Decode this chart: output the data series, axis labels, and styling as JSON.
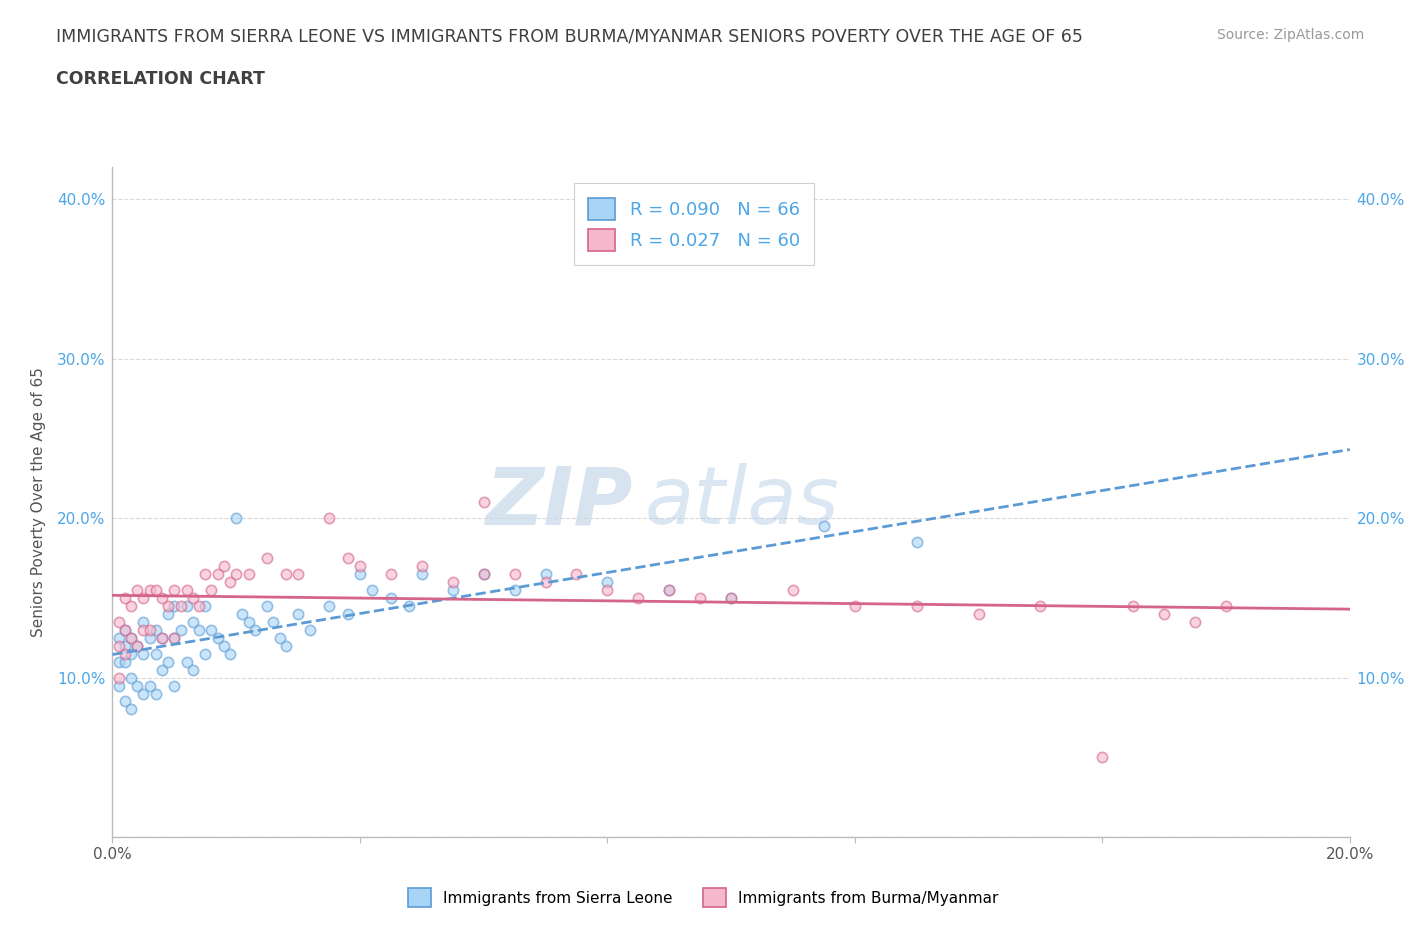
{
  "title_line1": "IMMIGRANTS FROM SIERRA LEONE VS IMMIGRANTS FROM BURMA/MYANMAR SENIORS POVERTY OVER THE AGE OF 65",
  "title_line2": "CORRELATION CHART",
  "source": "Source: ZipAtlas.com",
  "ylabel": "Seniors Poverty Over the Age of 65",
  "xlim": [
    0.0,
    0.2
  ],
  "ylim": [
    0.0,
    0.42
  ],
  "sierra_leone_color": "#a8d4f5",
  "burma_color": "#f5b8cc",
  "sierra_leone_R": 0.09,
  "sierra_leone_N": 66,
  "burma_R": 0.027,
  "burma_N": 60,
  "trend_sierra_leone_color": "#5b9bd5",
  "trend_burma_color": "#d4648a",
  "watermark_zip": "ZIP",
  "watermark_atlas": "atlas",
  "legend_label_1": "Immigrants from Sierra Leone",
  "legend_label_2": "Immigrants from Burma/Myanmar",
  "background_color": "#ffffff",
  "grid_color": "#d0d0d0",
  "title_color": "#404040",
  "axis_color": "#bbbbbb",
  "scatter_alpha": 0.6,
  "scatter_size": 55,
  "scatter_lw": 1.2,
  "sl_x": [
    0.001,
    0.001,
    0.001,
    0.002,
    0.002,
    0.002,
    0.002,
    0.003,
    0.003,
    0.003,
    0.003,
    0.004,
    0.004,
    0.005,
    0.005,
    0.005,
    0.006,
    0.006,
    0.007,
    0.007,
    0.007,
    0.008,
    0.008,
    0.009,
    0.009,
    0.01,
    0.01,
    0.01,
    0.011,
    0.012,
    0.012,
    0.013,
    0.013,
    0.014,
    0.015,
    0.015,
    0.016,
    0.017,
    0.018,
    0.019,
    0.02,
    0.021,
    0.022,
    0.023,
    0.025,
    0.026,
    0.027,
    0.028,
    0.03,
    0.032,
    0.035,
    0.038,
    0.04,
    0.042,
    0.045,
    0.048,
    0.05,
    0.055,
    0.06,
    0.065,
    0.07,
    0.08,
    0.09,
    0.1,
    0.115,
    0.13
  ],
  "sl_y": [
    0.125,
    0.11,
    0.095,
    0.13,
    0.12,
    0.11,
    0.085,
    0.125,
    0.115,
    0.1,
    0.08,
    0.12,
    0.095,
    0.135,
    0.115,
    0.09,
    0.125,
    0.095,
    0.13,
    0.115,
    0.09,
    0.125,
    0.105,
    0.14,
    0.11,
    0.145,
    0.125,
    0.095,
    0.13,
    0.145,
    0.11,
    0.135,
    0.105,
    0.13,
    0.145,
    0.115,
    0.13,
    0.125,
    0.12,
    0.115,
    0.2,
    0.14,
    0.135,
    0.13,
    0.145,
    0.135,
    0.125,
    0.12,
    0.14,
    0.13,
    0.145,
    0.14,
    0.165,
    0.155,
    0.15,
    0.145,
    0.165,
    0.155,
    0.165,
    0.155,
    0.165,
    0.16,
    0.155,
    0.15,
    0.195,
    0.185
  ],
  "bm_x": [
    0.001,
    0.001,
    0.001,
    0.002,
    0.002,
    0.002,
    0.003,
    0.003,
    0.004,
    0.004,
    0.005,
    0.005,
    0.006,
    0.006,
    0.007,
    0.008,
    0.008,
    0.009,
    0.01,
    0.01,
    0.011,
    0.012,
    0.013,
    0.014,
    0.015,
    0.016,
    0.017,
    0.018,
    0.019,
    0.02,
    0.022,
    0.025,
    0.028,
    0.03,
    0.035,
    0.038,
    0.04,
    0.045,
    0.05,
    0.055,
    0.06,
    0.06,
    0.065,
    0.07,
    0.075,
    0.08,
    0.085,
    0.09,
    0.095,
    0.1,
    0.11,
    0.12,
    0.13,
    0.14,
    0.15,
    0.16,
    0.165,
    0.17,
    0.175,
    0.18
  ],
  "bm_y": [
    0.135,
    0.12,
    0.1,
    0.15,
    0.13,
    0.115,
    0.145,
    0.125,
    0.155,
    0.12,
    0.15,
    0.13,
    0.155,
    0.13,
    0.155,
    0.15,
    0.125,
    0.145,
    0.155,
    0.125,
    0.145,
    0.155,
    0.15,
    0.145,
    0.165,
    0.155,
    0.165,
    0.17,
    0.16,
    0.165,
    0.165,
    0.175,
    0.165,
    0.165,
    0.2,
    0.175,
    0.17,
    0.165,
    0.17,
    0.16,
    0.21,
    0.165,
    0.165,
    0.16,
    0.165,
    0.155,
    0.15,
    0.155,
    0.15,
    0.15,
    0.155,
    0.145,
    0.145,
    0.14,
    0.145,
    0.05,
    0.145,
    0.14,
    0.135,
    0.145
  ]
}
